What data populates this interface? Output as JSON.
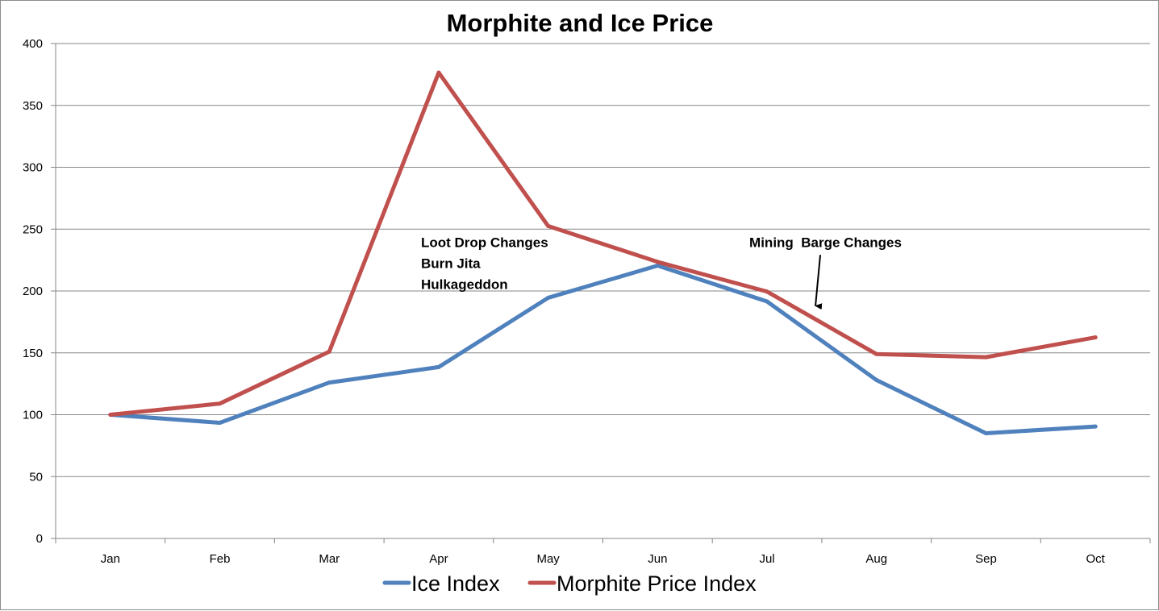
{
  "chart_data": {
    "type": "line",
    "title": "Morphite and Ice Price",
    "xlabel": "",
    "ylabel": "",
    "categories": [
      "Jan",
      "Feb",
      "Mar",
      "Apr",
      "May",
      "Jun",
      "Jul",
      "Aug",
      "Sep",
      "Oct"
    ],
    "ylim": [
      0,
      400
    ],
    "yticks": [
      "0",
      "50",
      "100",
      "150",
      "200",
      "250",
      "300",
      "350",
      "400"
    ],
    "grid": true,
    "legend_position": "bottom",
    "series": [
      {
        "name": "Ice Index",
        "color": "#4f81bd",
        "values": [
          100,
          93.5,
          126,
          138.5,
          194.5,
          220.5,
          191.5,
          128,
          85,
          90.5
        ]
      },
      {
        "name": "Morphite Price Index",
        "color": "#c0504d",
        "values": [
          100,
          109,
          151,
          376.5,
          252.5,
          223.5,
          199.5,
          149,
          146.5,
          162.5
        ]
      }
    ],
    "annotations": [
      {
        "lines": [
          "Loot Drop Changes",
          "Burn Jita",
          "Hulkageddon"
        ],
        "anchor_category": "Apr",
        "anchor_value": 250,
        "arrow": false
      },
      {
        "lines": [
          "Mining  Barge Changes"
        ],
        "anchor_category": "Jul",
        "anchor_value": 250,
        "arrow": true,
        "arrow_target_value": 188
      }
    ]
  }
}
